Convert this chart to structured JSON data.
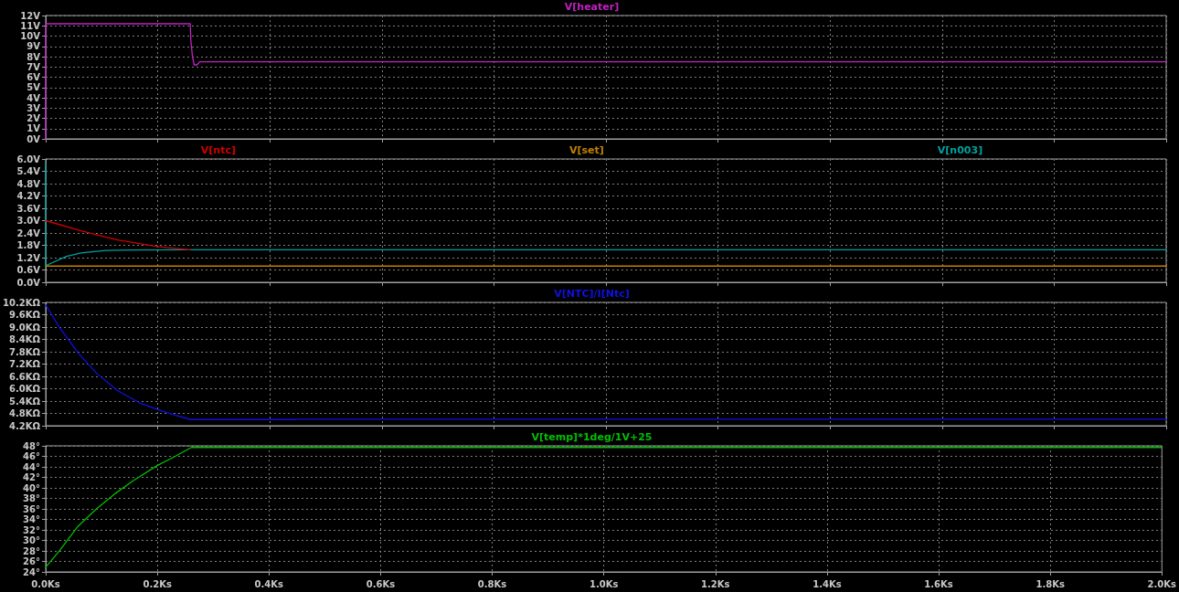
{
  "chart_data": [
    {
      "type": "line",
      "legend": "top",
      "grid": true,
      "tick_labels": "y",
      "marker": "none",
      "line_style": "solid",
      "xlim": [
        0,
        2.0
      ],
      "xticks": [
        {
          "value": 0,
          "label": null
        },
        {
          "value": 0.2,
          "label": null
        },
        {
          "value": 0.4,
          "label": null
        },
        {
          "value": 0.6,
          "label": null
        },
        {
          "value": 0.8,
          "label": null
        },
        {
          "value": 1.0,
          "label": null
        },
        {
          "value": 1.2,
          "label": null
        },
        {
          "value": 1.4,
          "label": null
        },
        {
          "value": 1.6,
          "label": null
        },
        {
          "value": 1.8,
          "label": null
        },
        {
          "value": 2.0,
          "label": null
        }
      ],
      "ylim": [
        0,
        12
      ],
      "yticks": [
        {
          "value": 0,
          "label": "0V"
        },
        {
          "value": 1,
          "label": "1V"
        },
        {
          "value": 2,
          "label": "2V"
        },
        {
          "value": 3,
          "label": "3V"
        },
        {
          "value": 4,
          "label": "4V"
        },
        {
          "value": 5,
          "label": "5V"
        },
        {
          "value": 6,
          "label": "6V"
        },
        {
          "value": 7,
          "label": "7V"
        },
        {
          "value": 8,
          "label": "8V"
        },
        {
          "value": 9,
          "label": "9V"
        },
        {
          "value": 10,
          "label": "10V"
        },
        {
          "value": 11,
          "label": "11V"
        },
        {
          "value": 12,
          "label": "12V"
        }
      ],
      "series": [
        {
          "name": "V[heater]",
          "color": "#c020c0",
          "x": [
            0,
            0,
            0.258,
            0.259,
            0.262,
            0.265,
            0.27,
            0.275,
            2.0
          ],
          "values": [
            0,
            11.2,
            11.2,
            9.6,
            8.0,
            7.2,
            7.2,
            7.5,
            7.5
          ]
        }
      ]
    },
    {
      "type": "line",
      "legend": "top",
      "grid": true,
      "tick_labels": "y",
      "marker": "none",
      "line_style": "solid",
      "xlim": [
        0,
        2.0
      ],
      "xticks": [
        {
          "value": 0,
          "label": null
        },
        {
          "value": 0.2,
          "label": null
        },
        {
          "value": 0.4,
          "label": null
        },
        {
          "value": 0.6,
          "label": null
        },
        {
          "value": 0.8,
          "label": null
        },
        {
          "value": 1.0,
          "label": null
        },
        {
          "value": 1.2,
          "label": null
        },
        {
          "value": 1.4,
          "label": null
        },
        {
          "value": 1.6,
          "label": null
        },
        {
          "value": 1.8,
          "label": null
        },
        {
          "value": 2.0,
          "label": null
        }
      ],
      "ylim": [
        0,
        6.0
      ],
      "yticks": [
        {
          "value": 0,
          "label": "0.0V"
        },
        {
          "value": 0.6,
          "label": "0.6V"
        },
        {
          "value": 1.2,
          "label": "1.2V"
        },
        {
          "value": 1.8,
          "label": "1.8V"
        },
        {
          "value": 2.4,
          "label": "2.4V"
        },
        {
          "value": 3.0,
          "label": "3.0V"
        },
        {
          "value": 3.6,
          "label": "3.6V"
        },
        {
          "value": 4.2,
          "label": "4.2V"
        },
        {
          "value": 4.8,
          "label": "4.8V"
        },
        {
          "value": 5.4,
          "label": "5.4V"
        },
        {
          "value": 6.0,
          "label": "6.0V"
        }
      ],
      "series": [
        {
          "name": "V[ntc]",
          "color": "#d00000",
          "x": [
            0,
            0.063,
            0.128,
            0.199,
            0.252,
            0.258
          ],
          "values": [
            3.0,
            2.51,
            2.06,
            1.74,
            1.59,
            1.58
          ]
        },
        {
          "name": "V[set]",
          "color": "#c08000",
          "x": [
            0,
            2.0
          ],
          "values": [
            0.79,
            0.79
          ]
        },
        {
          "name": "V[n003]",
          "color": "#00a0a0",
          "x": [
            0,
            0,
            0.037,
            0.063,
            0.107,
            0.155,
            0.25,
            2.0
          ],
          "values": [
            5.8,
            0.81,
            1.26,
            1.43,
            1.55,
            1.57,
            1.58,
            1.58
          ]
        }
      ]
    },
    {
      "type": "line",
      "legend": "top",
      "grid": true,
      "tick_labels": "y",
      "marker": "none",
      "line_style": "solid",
      "xlim": [
        0,
        2.0
      ],
      "xticks": [
        {
          "value": 0,
          "label": null
        },
        {
          "value": 0.2,
          "label": null
        },
        {
          "value": 0.4,
          "label": null
        },
        {
          "value": 0.6,
          "label": null
        },
        {
          "value": 0.8,
          "label": null
        },
        {
          "value": 1.0,
          "label": null
        },
        {
          "value": 1.2,
          "label": null
        },
        {
          "value": 1.4,
          "label": null
        },
        {
          "value": 1.6,
          "label": null
        },
        {
          "value": 1.8,
          "label": null
        },
        {
          "value": 2.0,
          "label": null
        }
      ],
      "ylim": [
        4.2,
        10.2
      ],
      "yticks": [
        {
          "value": 4.2,
          "label": "4.2KΩ"
        },
        {
          "value": 4.8,
          "label": "4.8KΩ"
        },
        {
          "value": 5.4,
          "label": "5.4KΩ"
        },
        {
          "value": 6.0,
          "label": "6.0KΩ"
        },
        {
          "value": 6.6,
          "label": "6.6KΩ"
        },
        {
          "value": 7.2,
          "label": "7.2KΩ"
        },
        {
          "value": 7.8,
          "label": "7.8KΩ"
        },
        {
          "value": 8.4,
          "label": "8.4KΩ"
        },
        {
          "value": 9.0,
          "label": "9.0KΩ"
        },
        {
          "value": 9.6,
          "label": "9.6KΩ"
        },
        {
          "value": 10.2,
          "label": "10.2KΩ"
        }
      ],
      "series": [
        {
          "name": "V[NTC]/I[Ntc]",
          "color": "#1010e0",
          "x": [
            0,
            0.024,
            0.058,
            0.091,
            0.128,
            0.167,
            0.199,
            0.232,
            0.259,
            0.445,
            0.446,
            2.0
          ],
          "values": [
            10.07,
            9.01,
            7.74,
            6.75,
            5.91,
            5.32,
            4.99,
            4.71,
            4.5,
            4.5,
            4.52,
            4.52
          ]
        }
      ]
    },
    {
      "type": "line",
      "legend": "top",
      "grid": true,
      "marker": "none",
      "line_style": "solid",
      "xlim": [
        0,
        2.0
      ],
      "xticks": [
        {
          "value": 0,
          "label": "0.0Ks"
        },
        {
          "value": 0.2,
          "label": "0.2Ks"
        },
        {
          "value": 0.4,
          "label": "0.4Ks"
        },
        {
          "value": 0.6,
          "label": "0.6Ks"
        },
        {
          "value": 0.8,
          "label": "0.8Ks"
        },
        {
          "value": 1.0,
          "label": "1.0Ks"
        },
        {
          "value": 1.2,
          "label": "1.2Ks"
        },
        {
          "value": 1.4,
          "label": "1.4Ks"
        },
        {
          "value": 1.6,
          "label": "1.6Ks"
        },
        {
          "value": 1.8,
          "label": "1.8Ks"
        },
        {
          "value": 2.0,
          "label": "2.0Ks"
        }
      ],
      "ylim": [
        24,
        48
      ],
      "yticks": [
        {
          "value": 24,
          "label": "24°"
        },
        {
          "value": 26,
          "label": "26°"
        },
        {
          "value": 28,
          "label": "28°"
        },
        {
          "value": 30,
          "label": "30°"
        },
        {
          "value": 32,
          "label": "32°"
        },
        {
          "value": 34,
          "label": "34°"
        },
        {
          "value": 36,
          "label": "36°"
        },
        {
          "value": 38,
          "label": "38°"
        },
        {
          "value": 40,
          "label": "40°"
        },
        {
          "value": 42,
          "label": "42°"
        },
        {
          "value": 44,
          "label": "44°"
        },
        {
          "value": 46,
          "label": "46°"
        },
        {
          "value": 48,
          "label": "48°"
        }
      ],
      "series": [
        {
          "name": "V[temp]*1deg/1V+25",
          "color": "#00c000",
          "x": [
            0,
            0.026,
            0.058,
            0.091,
            0.123,
            0.156,
            0.199,
            0.232,
            0.261,
            2.0
          ],
          "values": [
            24.9,
            28.2,
            32.7,
            36.0,
            38.8,
            41.3,
            44.2,
            46.0,
            47.7,
            47.7
          ]
        }
      ]
    }
  ]
}
